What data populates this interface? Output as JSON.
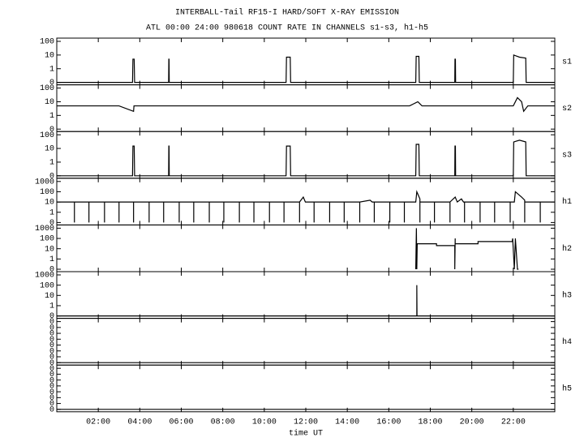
{
  "chart_data": {
    "type": "line",
    "scale": "symlog",
    "color": "#000000",
    "title": "INTERBALL-Tail RF15-I HARD/SOFT X-RAY EMISSION",
    "subtitle": "ATL 00:00 24:00 980618  COUNT RATE IN CHANNELS s1-s3, h1-h5",
    "xlabel": "time UT",
    "xlim": [
      0,
      24
    ],
    "xticks": [
      {
        "value": 2,
        "label": "02:00"
      },
      {
        "value": 4,
        "label": "04:00"
      },
      {
        "value": 6,
        "label": "06:00"
      },
      {
        "value": 8,
        "label": "08:00"
      },
      {
        "value": 10,
        "label": "10:00"
      },
      {
        "value": 12,
        "label": "12:00"
      },
      {
        "value": 14,
        "label": "14:00"
      },
      {
        "value": 16,
        "label": "16:00"
      },
      {
        "value": 18,
        "label": "18:00"
      },
      {
        "value": 20,
        "label": "20:00"
      },
      {
        "value": 22,
        "label": "22:00"
      }
    ],
    "panels": [
      {
        "name": "s1",
        "ylim": [
          0,
          100
        ],
        "yticks": [
          0,
          1,
          10,
          100
        ],
        "x": [
          0,
          3.65,
          3.67,
          3.73,
          3.75,
          5.39,
          5.4,
          5.41,
          5.42,
          11.05,
          11.07,
          11.25,
          11.27,
          17.3,
          17.32,
          17.45,
          17.47,
          19.18,
          19.19,
          19.21,
          19.22,
          22.0,
          22.02,
          22.3,
          22.6,
          22.62,
          24
        ],
        "values": [
          0,
          0,
          5,
          5,
          0,
          0,
          5,
          5,
          0,
          0,
          7,
          7,
          0,
          0,
          8,
          8,
          0,
          0,
          5,
          5,
          0,
          0,
          10,
          7,
          6,
          0,
          0
        ]
      },
      {
        "name": "s2",
        "ylim": [
          0,
          100
        ],
        "yticks": [
          0,
          1,
          10,
          100
        ],
        "x": [
          0,
          1,
          2,
          3,
          3.7,
          3.72,
          4,
          5,
          6,
          7,
          8,
          9,
          10,
          11,
          12,
          13,
          14,
          15,
          16,
          17,
          17.4,
          17.6,
          18,
          19,
          20,
          21,
          22,
          22.2,
          22.4,
          22.5,
          22.7,
          23,
          24
        ],
        "values": [
          5,
          5,
          5,
          5,
          2,
          5,
          5,
          5,
          5,
          5,
          5,
          5,
          5,
          5,
          5,
          5,
          5,
          5,
          5,
          5,
          10,
          5,
          5,
          5,
          5,
          5,
          5,
          20,
          10,
          2,
          5,
          5,
          5
        ]
      },
      {
        "name": "s3",
        "ylim": [
          0,
          100
        ],
        "yticks": [
          0,
          1,
          10,
          100
        ],
        "x": [
          0,
          3.65,
          3.67,
          3.73,
          3.75,
          5.39,
          5.4,
          5.41,
          5.42,
          11.05,
          11.07,
          11.25,
          11.27,
          17.3,
          17.32,
          17.45,
          17.47,
          19.18,
          19.19,
          19.21,
          19.22,
          22.0,
          22.02,
          22.3,
          22.6,
          22.62,
          24
        ],
        "values": [
          0,
          0,
          15,
          15,
          0,
          0,
          15,
          15,
          0,
          0,
          15,
          15,
          0,
          0,
          20,
          20,
          0,
          0,
          15,
          15,
          0,
          0,
          30,
          40,
          30,
          0,
          0
        ]
      },
      {
        "name": "h1",
        "ylim": [
          0,
          1000
        ],
        "yticks": [
          0,
          1,
          10,
          100,
          1000
        ],
        "x": [
          0,
          0.85,
          0.85,
          0.85,
          1.55,
          1.55,
          1.55,
          2.3,
          2.3,
          2.3,
          3.0,
          3.0,
          3.0,
          3.7,
          3.7,
          3.7,
          4.45,
          4.45,
          4.45,
          5.15,
          5.15,
          5.15,
          5.9,
          5.9,
          5.9,
          6.6,
          6.6,
          6.6,
          7.35,
          7.35,
          7.35,
          8.05,
          8.05,
          8.05,
          8.8,
          8.8,
          8.8,
          9.5,
          9.5,
          9.5,
          10.25,
          10.25,
          10.25,
          10.95,
          10.95,
          10.95,
          11.7,
          11.7,
          11.7,
          11.88,
          11.98,
          12.4,
          12.4,
          12.4,
          13.15,
          13.15,
          13.15,
          13.85,
          13.85,
          13.85,
          14.6,
          14.6,
          14.6,
          15.1,
          15.2,
          15.3,
          15.3,
          15.3,
          16.05,
          16.05,
          16.05,
          16.75,
          16.75,
          16.75,
          17.3,
          17.35,
          17.5,
          17.5,
          17.5,
          18.2,
          18.2,
          18.2,
          18.95,
          18.95,
          18.95,
          19.2,
          19.3,
          19.5,
          19.6,
          19.65,
          19.65,
          19.65,
          20.4,
          20.4,
          20.4,
          21.1,
          21.1,
          21.1,
          21.85,
          21.85,
          21.85,
          22.05,
          22.1,
          22.4,
          22.55,
          22.55,
          22.55,
          23.3,
          23.3,
          23.3,
          24
        ],
        "values": [
          10,
          10,
          0,
          10,
          10,
          0,
          10,
          10,
          0,
          10,
          10,
          0,
          10,
          10,
          0,
          10,
          10,
          0,
          10,
          10,
          0,
          10,
          10,
          0,
          10,
          10,
          0,
          10,
          10,
          0,
          10,
          10,
          0,
          10,
          10,
          0,
          10,
          10,
          0,
          10,
          10,
          0,
          10,
          10,
          0,
          10,
          10,
          0,
          10,
          30,
          10,
          10,
          0,
          10,
          10,
          0,
          10,
          10,
          0,
          10,
          10,
          0,
          10,
          15,
          10,
          10,
          0,
          10,
          10,
          0,
          10,
          10,
          0,
          10,
          10,
          100,
          20,
          0,
          10,
          10,
          0,
          10,
          10,
          0,
          10,
          30,
          10,
          20,
          10,
          10,
          0,
          10,
          10,
          0,
          10,
          10,
          0,
          10,
          10,
          0,
          10,
          10,
          100,
          30,
          15,
          0,
          10,
          10,
          0,
          10,
          10
        ]
      },
      {
        "name": "h2",
        "ylim": [
          0,
          1000
        ],
        "yticks": [
          0,
          1,
          10,
          100,
          1000
        ],
        "x": [
          17.3,
          17.33,
          17.35,
          17.37,
          17.4,
          18.3,
          18.3,
          19.18,
          19.18,
          19.2,
          19.2,
          20.3,
          20.3,
          21.95,
          21.97,
          22.05,
          22.1,
          22.2,
          22.25
        ],
        "values": [
          0,
          1000,
          0,
          30,
          30,
          30,
          20,
          20,
          0,
          100,
          30,
          30,
          50,
          50,
          100,
          0,
          100,
          0,
          0
        ]
      },
      {
        "name": "h3",
        "ylim": [
          0,
          1000
        ],
        "yticks": [
          0,
          1,
          10,
          100,
          1000
        ],
        "x": [
          0,
          17.35,
          17.35,
          17.36,
          24
        ],
        "values": [
          0,
          0,
          100,
          0,
          0
        ]
      },
      {
        "name": "h4",
        "ylim": [
          0,
          0.49
        ],
        "yticks": [
          0,
          {
            "value": 0.07,
            "label": "0"
          },
          {
            "value": 0.14,
            "label": "0"
          },
          {
            "value": 0.21,
            "label": "0"
          },
          {
            "value": 0.28,
            "label": "0"
          },
          {
            "value": 0.35,
            "label": "0"
          },
          {
            "value": 0.42,
            "label": "0"
          },
          {
            "value": 0.49,
            "label": "0"
          }
        ],
        "x": [
          0,
          24
        ],
        "values": [
          0,
          0
        ]
      },
      {
        "name": "h5",
        "ylim": [
          0,
          0.49
        ],
        "yticks": [
          0,
          {
            "value": 0.07,
            "label": "0"
          },
          {
            "value": 0.14,
            "label": "0"
          },
          {
            "value": 0.21,
            "label": "0"
          },
          {
            "value": 0.28,
            "label": "0"
          },
          {
            "value": 0.35,
            "label": "0"
          },
          {
            "value": 0.42,
            "label": "0"
          },
          {
            "value": 0.49,
            "label": "0"
          }
        ],
        "x": [
          0,
          24
        ],
        "values": [
          0,
          0
        ]
      }
    ]
  }
}
